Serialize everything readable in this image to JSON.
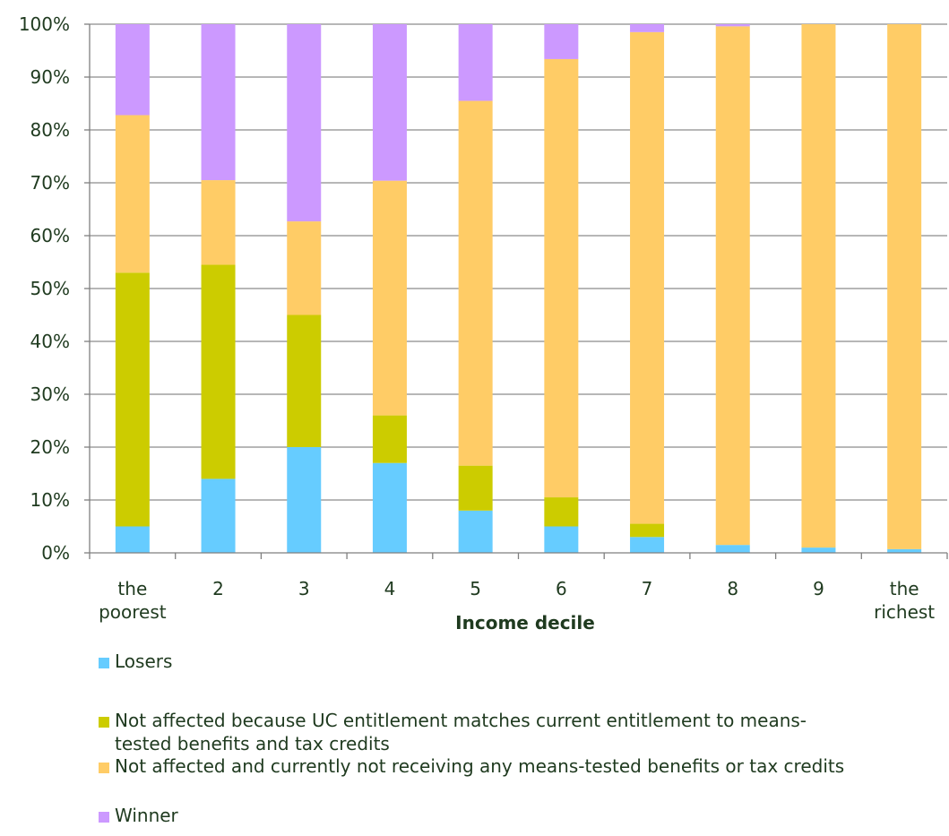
{
  "chart_data": {
    "type": "bar",
    "stacked": true,
    "categories": [
      [
        "the",
        "poorest"
      ],
      [
        "2"
      ],
      [
        "3"
      ],
      [
        "4"
      ],
      [
        "5"
      ],
      [
        "6"
      ],
      [
        "7"
      ],
      [
        "8"
      ],
      [
        "9"
      ],
      [
        "the",
        "richest"
      ]
    ],
    "xlabel": "Income decile",
    "ylabel": "",
    "ylim": [
      0,
      100
    ],
    "yticks": [
      "0%",
      "10%",
      "20%",
      "30%",
      "40%",
      "50%",
      "60%",
      "70%",
      "80%",
      "90%",
      "100%"
    ],
    "grid": true,
    "legend_position": "bottom",
    "series": [
      {
        "name": "Losers",
        "color": "#66ccff",
        "values": [
          5,
          14,
          20,
          17,
          8,
          5,
          3,
          1.5,
          1,
          0.7
        ]
      },
      {
        "name": "Not affected because UC entitlement matches current entitlement to means-tested benefits and tax credits",
        "legend_lines": [
          "Not affected because UC entitlement matches current entitlement to means-",
          "tested benefits and tax credits"
        ],
        "color": "#cccc00",
        "values": [
          48,
          40.5,
          25,
          9,
          8.5,
          5.5,
          2.5,
          0,
          0,
          0
        ]
      },
      {
        "name": "Not affected and currently not receiving any means-tested benefits or tax credits",
        "color": "#ffcc66",
        "values": [
          29.8,
          16,
          17.7,
          44.4,
          69,
          82.9,
          93,
          98.1,
          99,
          99.3
        ]
      },
      {
        "name": "Winner",
        "color": "#cc99ff",
        "values": [
          17.2,
          29.5,
          37.3,
          29.6,
          14.5,
          6.6,
          1.5,
          0.4,
          0,
          0
        ]
      }
    ]
  }
}
